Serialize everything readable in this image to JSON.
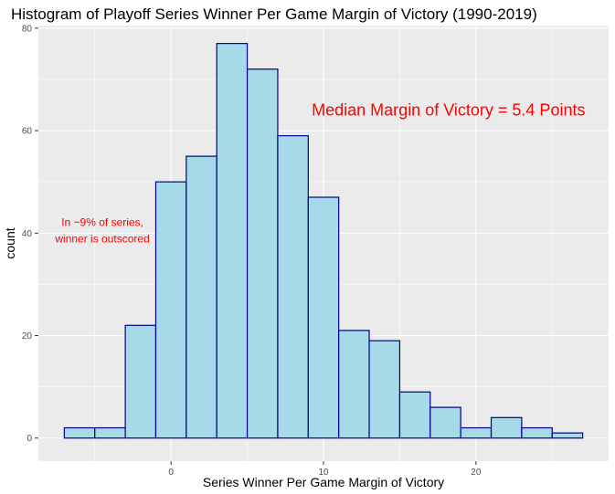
{
  "chart_data": {
    "type": "bar",
    "title": "Histogram of Playoff Series Winner Per Game Margin of Victory (1990-2019)",
    "xlabel": "Series Winner Per Game Margin of Victory",
    "ylabel": "count",
    "bin_width": 2,
    "bins": [
      {
        "x0": -7,
        "x1": -5,
        "count": 2
      },
      {
        "x0": -5,
        "x1": -3,
        "count": 2
      },
      {
        "x0": -3,
        "x1": -1,
        "count": 22
      },
      {
        "x0": -1,
        "x1": 1,
        "count": 50
      },
      {
        "x0": 1,
        "x1": 3,
        "count": 55
      },
      {
        "x0": 3,
        "x1": 5,
        "count": 77
      },
      {
        "x0": 5,
        "x1": 7,
        "count": 72
      },
      {
        "x0": 7,
        "x1": 9,
        "count": 59
      },
      {
        "x0": 9,
        "x1": 11,
        "count": 47
      },
      {
        "x0": 11,
        "x1": 13,
        "count": 21
      },
      {
        "x0": 13,
        "x1": 15,
        "count": 19
      },
      {
        "x0": 15,
        "x1": 17,
        "count": 9
      },
      {
        "x0": 17,
        "x1": 19,
        "count": 6
      },
      {
        "x0": 19,
        "x1": 21,
        "count": 2
      },
      {
        "x0": 21,
        "x1": 23,
        "count": 4
      },
      {
        "x0": 23,
        "x1": 25,
        "count": 2
      },
      {
        "x0": 25,
        "x1": 27,
        "count": 1
      }
    ],
    "xlim": [
      -8.7,
      28.7
    ],
    "ylim": [
      -4.5,
      80.5
    ],
    "xticks": [
      0,
      10,
      20
    ],
    "yticks": [
      0,
      20,
      40,
      60,
      80
    ],
    "grid": true,
    "annotations": [
      {
        "text": "Median Margin of Victory = 5.4 Points",
        "x": 18.2,
        "y": 64,
        "color": "#ff0000",
        "size": "large"
      },
      {
        "lines": [
          "In ~9% of series,",
          "winner is outscored"
        ],
        "x": -4.5,
        "y": 40.5,
        "color": "#ff0000",
        "size": "small"
      }
    ],
    "colors": {
      "bar_fill": "#a6dae8",
      "bar_stroke": "#00008b",
      "panel_bg": "#ebebeb",
      "grid_major": "#ffffff",
      "text_annotation": "#ff0000"
    }
  }
}
